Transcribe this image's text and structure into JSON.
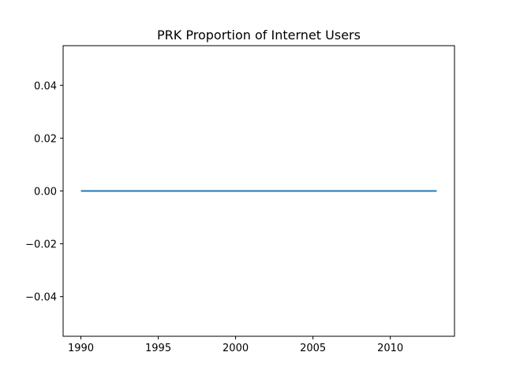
{
  "chart_data": {
    "type": "line",
    "title": "PRK Proportion of Internet Users",
    "xlabel": "",
    "ylabel": "",
    "x": [
      1990,
      1991,
      1992,
      1993,
      1994,
      1995,
      1996,
      1997,
      1998,
      1999,
      2000,
      2001,
      2002,
      2003,
      2004,
      2005,
      2006,
      2007,
      2008,
      2009,
      2010,
      2011,
      2012,
      2013
    ],
    "series": [
      {
        "values": [
          0,
          0,
          0,
          0,
          0,
          0,
          0,
          0,
          0,
          0,
          0,
          0,
          0,
          0,
          0,
          0,
          0,
          0,
          0,
          0,
          0,
          0,
          0,
          0
        ],
        "color": "#1f77b4"
      }
    ],
    "xlim": [
      1988.85,
      2014.15
    ],
    "ylim": [
      -0.055,
      0.055
    ],
    "xticks": [
      1990,
      1995,
      2000,
      2005,
      2010
    ],
    "xtick_labels": [
      "1990",
      "1995",
      "2000",
      "2005",
      "2010"
    ],
    "yticks": [
      -0.04,
      -0.02,
      0.0,
      0.02,
      0.04
    ],
    "ytick_labels": [
      "−0.04",
      "−0.02",
      "0.00",
      "0.02",
      "0.04"
    ],
    "grid": false,
    "legend": "none"
  }
}
